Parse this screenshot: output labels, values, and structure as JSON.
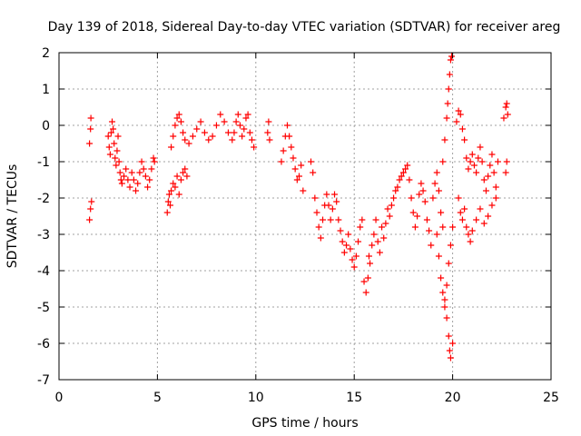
{
  "chart_data": {
    "type": "scatter",
    "title": "Day 139 of 2018, Sidereal Day-to-day VTEC variation (SDTVAR) for receiver areg",
    "xlabel": "GPS time / hours",
    "ylabel": "SDTVAR / TECUs",
    "xlim": [
      0,
      25
    ],
    "ylim": [
      -7,
      2
    ],
    "xticks": [
      0,
      5,
      10,
      15,
      20,
      25
    ],
    "yticks": [
      -7,
      -6,
      -5,
      -4,
      -3,
      -2,
      -1,
      0,
      1,
      2
    ],
    "grid": true,
    "marker": "+",
    "series": [
      {
        "name": "SDTVAR",
        "color": "#ff0000",
        "x": [
          1.55,
          1.6,
          1.65,
          1.55,
          1.6,
          1.62,
          2.5,
          2.55,
          2.6,
          2.65,
          2.7,
          2.75,
          2.8,
          2.85,
          2.9,
          2.95,
          3.0,
          3.05,
          3.1,
          3.15,
          3.2,
          3.3,
          3.4,
          3.5,
          3.6,
          3.7,
          3.8,
          3.9,
          4.0,
          4.1,
          4.2,
          4.3,
          4.4,
          4.5,
          4.6,
          4.7,
          4.8,
          4.85,
          5.5,
          5.55,
          5.6,
          5.65,
          5.7,
          5.8,
          5.9,
          6.0,
          6.1,
          6.2,
          6.3,
          6.4,
          6.5,
          5.7,
          5.8,
          5.9,
          6.0,
          6.1,
          6.2,
          6.3,
          6.4,
          6.6,
          6.8,
          7.0,
          7.2,
          7.4,
          7.6,
          7.8,
          8.0,
          8.2,
          8.4,
          8.6,
          8.8,
          8.9,
          9.0,
          9.1,
          9.2,
          9.3,
          9.4,
          9.5,
          9.6,
          9.7,
          9.8,
          9.9,
          10.6,
          10.65,
          10.7,
          11.3,
          11.4,
          11.5,
          11.6,
          11.7,
          11.8,
          11.9,
          12.0,
          12.1,
          12.2,
          12.3,
          12.4,
          12.8,
          12.9,
          13.0,
          13.1,
          13.2,
          13.3,
          13.4,
          13.5,
          13.6,
          13.7,
          13.8,
          13.9,
          14.0,
          14.1,
          14.2,
          14.3,
          14.4,
          14.5,
          14.6,
          14.7,
          14.8,
          14.9,
          15.0,
          15.1,
          15.2,
          15.3,
          15.4,
          15.5,
          15.6,
          15.7,
          15.75,
          15.8,
          15.9,
          16.0,
          16.1,
          16.2,
          16.3,
          16.4,
          16.5,
          16.6,
          16.7,
          16.8,
          16.9,
          17.0,
          17.1,
          17.2,
          17.3,
          17.4,
          17.5,
          17.6,
          17.7,
          17.8,
          17.9,
          18.0,
          18.1,
          18.2,
          18.3,
          18.4,
          18.5,
          18.6,
          18.7,
          18.8,
          18.9,
          19.0,
          19.1,
          19.2,
          19.3,
          19.4,
          19.5,
          19.5,
          19.6,
          19.7,
          19.75,
          19.8,
          19.85,
          19.9,
          19.95,
          19.6,
          19.7,
          19.8,
          19.85,
          19.9,
          20.0,
          19.2,
          19.3,
          19.4,
          19.5,
          19.6,
          19.7,
          19.8,
          19.9,
          20.0,
          20.2,
          20.3,
          20.4,
          20.5,
          20.6,
          20.7,
          20.8,
          20.9,
          21.0,
          21.1,
          21.2,
          21.3,
          21.4,
          21.5,
          21.6,
          21.7,
          21.8,
          21.9,
          22.0,
          22.1,
          22.2,
          22.3,
          20.3,
          20.4,
          20.5,
          20.6,
          20.7,
          20.8,
          20.9,
          21.0,
          21.2,
          21.4,
          21.6,
          21.8,
          22.0,
          22.2,
          22.6,
          22.7,
          22.75,
          22.8,
          22.7,
          22.75
        ],
        "y": [
          -2.6,
          -2.3,
          -2.1,
          -0.5,
          -0.1,
          0.2,
          -0.3,
          -0.6,
          -0.8,
          -0.2,
          0.1,
          -0.1,
          -0.5,
          -0.9,
          -1.1,
          -0.7,
          -0.3,
          -1.0,
          -1.3,
          -1.5,
          -1.6,
          -1.4,
          -1.2,
          -1.5,
          -1.7,
          -1.3,
          -1.5,
          -1.8,
          -1.6,
          -1.3,
          -1.0,
          -1.2,
          -1.4,
          -1.7,
          -1.5,
          -1.2,
          -0.9,
          -1.0,
          -2.4,
          -2.1,
          -1.9,
          -2.2,
          -1.8,
          -1.6,
          -1.7,
          -1.4,
          -1.9,
          -1.5,
          -1.3,
          -1.2,
          -1.4,
          -0.6,
          -0.3,
          0.0,
          0.2,
          0.3,
          0.1,
          -0.2,
          -0.4,
          -0.5,
          -0.3,
          -0.1,
          0.1,
          -0.2,
          -0.4,
          -0.3,
          0.0,
          0.3,
          0.1,
          -0.2,
          -0.4,
          -0.2,
          0.1,
          0.3,
          0.0,
          -0.3,
          -0.1,
          0.2,
          0.3,
          -0.2,
          -0.4,
          -0.6,
          -0.2,
          0.1,
          -0.4,
          -1.0,
          -0.7,
          -0.3,
          0.0,
          -0.3,
          -0.6,
          -0.9,
          -1.2,
          -1.5,
          -1.4,
          -1.1,
          -1.8,
          -1.0,
          -1.3,
          -2.0,
          -2.4,
          -2.8,
          -3.1,
          -2.6,
          -2.2,
          -1.9,
          -2.2,
          -2.6,
          -2.3,
          -1.9,
          -2.1,
          -2.6,
          -2.9,
          -3.2,
          -3.5,
          -3.3,
          -3.0,
          -3.4,
          -3.7,
          -3.9,
          -3.6,
          -3.2,
          -2.8,
          -2.6,
          -4.3,
          -4.6,
          -4.2,
          -3.6,
          -3.8,
          -3.3,
          -3.0,
          -2.6,
          -3.2,
          -3.5,
          -2.8,
          -3.1,
          -2.7,
          -2.3,
          -2.5,
          -2.2,
          -2.0,
          -1.8,
          -1.7,
          -1.5,
          -1.4,
          -1.3,
          -1.2,
          -1.1,
          -1.5,
          -2.0,
          -2.4,
          -2.8,
          -2.5,
          -1.9,
          -1.6,
          -1.8,
          -2.1,
          -2.6,
          -2.9,
          -3.3,
          -2.0,
          -1.6,
          -1.3,
          -1.8,
          -2.4,
          -2.8,
          -1.0,
          -0.4,
          0.2,
          0.6,
          1.0,
          1.4,
          1.8,
          1.9,
          -4.8,
          -5.3,
          -5.8,
          -6.2,
          -6.4,
          -6.0,
          -3.0,
          -3.6,
          -4.2,
          -4.6,
          -5.0,
          -4.4,
          -3.8,
          -3.3,
          -2.8,
          0.1,
          0.4,
          0.3,
          -0.1,
          -0.4,
          -0.9,
          -1.2,
          -1.0,
          -0.8,
          -1.1,
          -1.3,
          -0.9,
          -0.6,
          -1.0,
          -1.5,
          -1.8,
          -1.4,
          -1.1,
          -0.8,
          -1.3,
          -1.7,
          -1.0,
          -2.0,
          -2.4,
          -2.6,
          -2.3,
          -2.8,
          -3.0,
          -3.2,
          -2.9,
          -2.6,
          -2.3,
          -2.7,
          -2.5,
          -2.2,
          -2.0,
          0.2,
          0.5,
          0.6,
          0.3,
          -1.3,
          -1.0
        ]
      }
    ]
  }
}
